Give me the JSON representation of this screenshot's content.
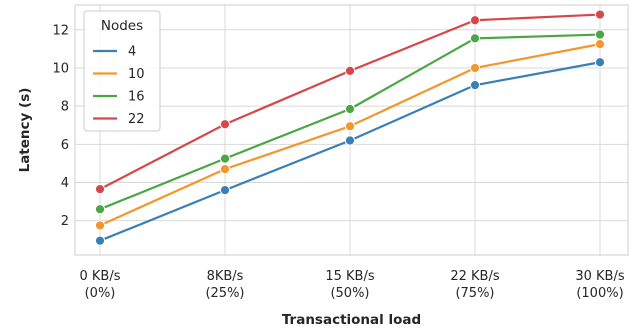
{
  "chart_data": {
    "type": "line",
    "xlabel": "Transactional load",
    "ylabel": "Latency (s)",
    "categories": [
      [
        "0 KB/s",
        "(0%)"
      ],
      [
        "8KB/s",
        "(25%)"
      ],
      [
        "15 KB/s",
        "(50%)"
      ],
      [
        "22 KB/s",
        "(75%)"
      ],
      [
        "30 KB/s",
        "(100%)"
      ]
    ],
    "ylim": [
      0.2,
      13.3
    ],
    "yticks": [
      2,
      4,
      6,
      8,
      10,
      12
    ],
    "grid": true,
    "legend": {
      "title": "Nodes",
      "placement": "top-left"
    },
    "series": [
      {
        "name": "4",
        "color": "#3a7fb6",
        "values": [
          0.95,
          3.6,
          6.2,
          9.1,
          10.3
        ]
      },
      {
        "name": "10",
        "color": "#f5962d",
        "values": [
          1.75,
          4.7,
          6.95,
          10.0,
          11.25
        ]
      },
      {
        "name": "16",
        "color": "#4ba646",
        "values": [
          2.6,
          5.25,
          7.85,
          11.55,
          11.75
        ]
      },
      {
        "name": "22",
        "color": "#d6474a",
        "values": [
          3.65,
          7.05,
          9.85,
          12.5,
          12.8
        ]
      }
    ]
  }
}
